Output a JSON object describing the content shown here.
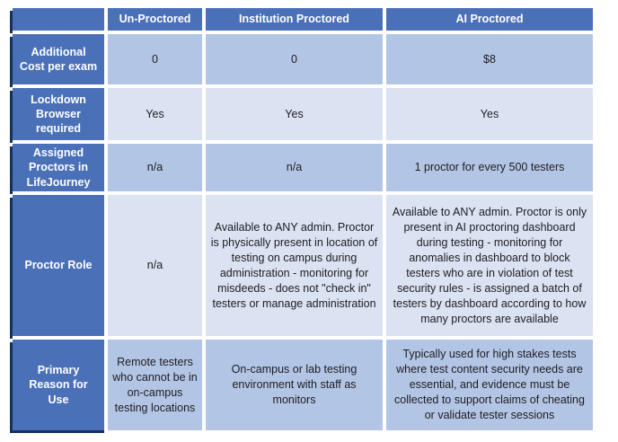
{
  "table": {
    "columns": [
      "",
      "Un-Proctored",
      "Institution Proctored",
      "AI Proctored"
    ],
    "rows": [
      {
        "header": "Additional Cost per exam",
        "cells": [
          "0",
          "0",
          "$8"
        ]
      },
      {
        "header": "Lockdown Browser required",
        "cells": [
          "Yes",
          "Yes",
          "Yes"
        ]
      },
      {
        "header": "Assigned Proctors in LifeJourney",
        "cells": [
          "n/a",
          "n/a",
          "1 proctor for every 500 testers"
        ]
      },
      {
        "header": "Proctor Role",
        "cells": [
          "n/a",
          "Available to ANY admin. Proctor is physically present in location of testing on campus during administration - monitoring for misdeeds - does not \"check in\" testers or manage administration",
          "Available to ANY admin. Proctor is only present in AI proctoring dashboard during testing - monitoring for anomalies in dashboard to block testers who are in violation of test security rules - is assigned a batch of testers by dashboard according to how many proctors are available"
        ]
      },
      {
        "header": "Primary Reason for Use",
        "cells": [
          "Remote testers who cannot be in on-campus testing locations",
          "On-campus or lab testing environment with staff as monitors",
          "Typically used for high stakes tests where test content security needs are essential, and evidence must be collected to support claims of cheating or validate tester sessions"
        ]
      }
    ],
    "colors": {
      "header_bg": "#4a70b8",
      "band_medium": "#b3c5e5",
      "band_light": "#dbe2f2",
      "shadow_accent": "#16305f",
      "header_text": "#ffffff",
      "body_text": "#1d1d1f"
    }
  }
}
